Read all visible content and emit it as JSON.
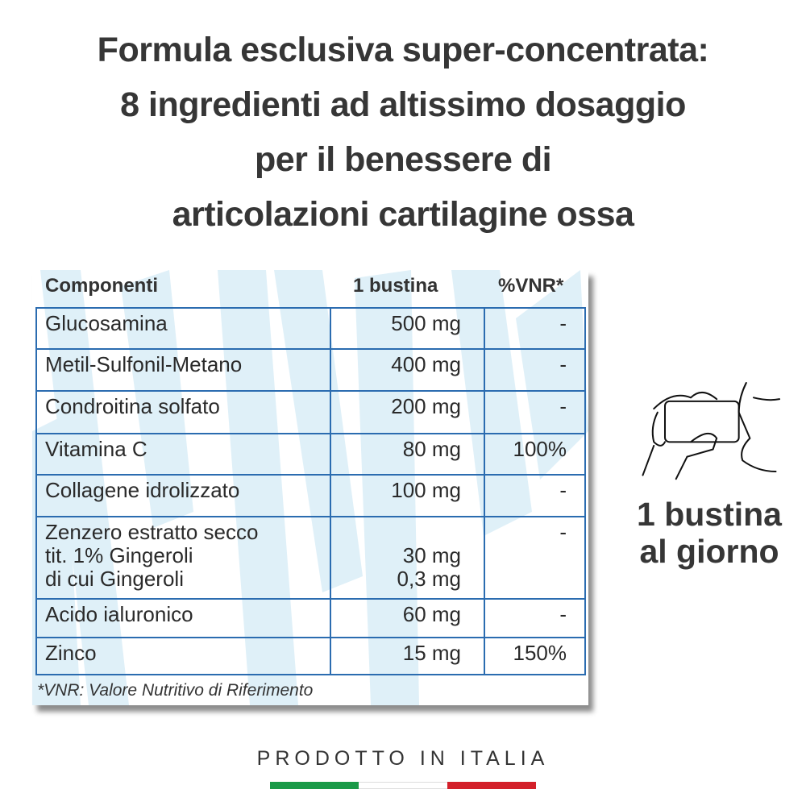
{
  "headline": [
    "Formula esclusiva super-concentrata:",
    "8 ingredienti ad altissimo dosaggio",
    "per il benessere di",
    "articolazioni cartilagine ossa"
  ],
  "table": {
    "headers": [
      "Componenti",
      "1 bustina",
      "%VNR*"
    ],
    "rows": [
      {
        "name": "Glucosamina",
        "amount": "500 mg",
        "vnr": "-"
      },
      {
        "name": "Metil-Sulfonil-Metano",
        "amount": "400 mg",
        "vnr": "-"
      },
      {
        "name": "Condroitina solfato",
        "amount": "200 mg",
        "vnr": "-"
      },
      {
        "name": "Vitamina C",
        "amount": "80 mg",
        "vnr": "100%"
      },
      {
        "name": "Collagene idrolizzato",
        "amount": "100 mg",
        "vnr": "-"
      },
      {
        "name": "Zenzero estratto secco\ntit. 1% Gingeroli\ndi cui Gingeroli",
        "amount": "\n30 mg\n0,3 mg",
        "vnr": "-"
      },
      {
        "name": "Acido ialuronico",
        "amount": "60 mg",
        "vnr": "-"
      },
      {
        "name": "Zinco",
        "amount": "15 mg",
        "vnr": "150%"
      }
    ],
    "footnote": "*VNR: Valore Nutritivo di Riferimento"
  },
  "dosage": {
    "icon": "drinking-glass-hands-icon",
    "line1": "1 bustina",
    "line2": "al giorno"
  },
  "origin": {
    "label": "PRODOTTO IN ITALIA",
    "flag_colors": [
      "#1a9a48",
      "#ffffff",
      "#d3202a"
    ]
  },
  "colors": {
    "table_border": "#2b6cb0",
    "watermark": "#dff0f8",
    "text": "#363636"
  }
}
